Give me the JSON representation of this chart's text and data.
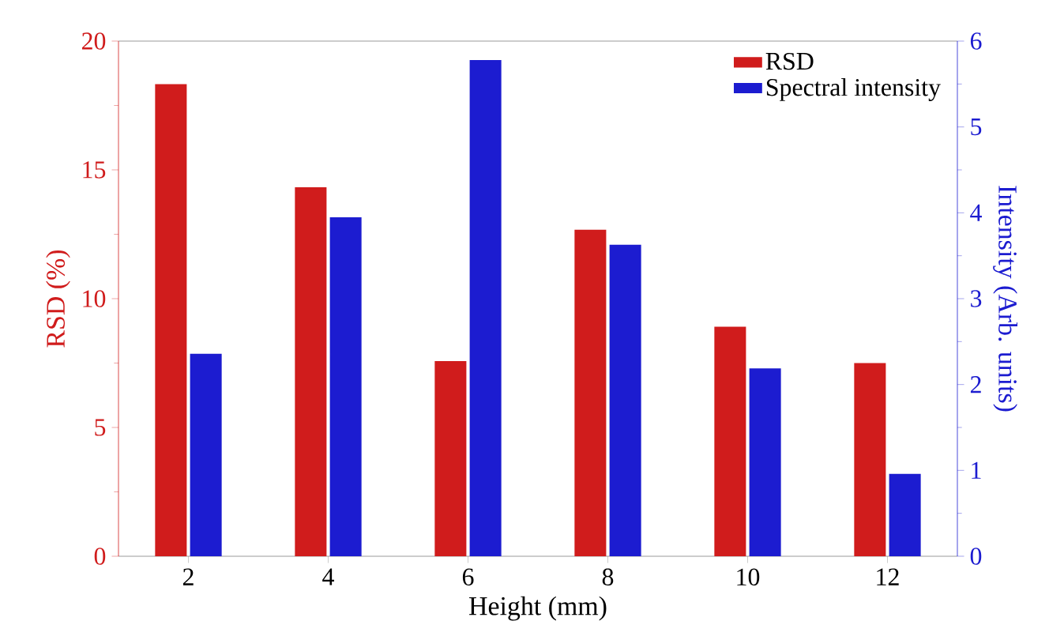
{
  "chart_data": {
    "type": "bar",
    "xlabel": "Height (mm)",
    "ylabel": "RSD (%)",
    "y2label": "Intensity (Arb. units)",
    "categories": [
      "2",
      "4",
      "6",
      "8",
      "10",
      "12"
    ],
    "series": [
      {
        "name": "RSD",
        "color": "#d01c1c",
        "values": [
          18.3,
          14.3,
          7.55,
          12.65,
          8.88,
          7.47
        ]
      },
      {
        "name": "Spectral intensity",
        "color": "#1c1cd0",
        "axis": "y2",
        "values": [
          2.35,
          3.94,
          5.77,
          3.62,
          2.18,
          0.95
        ]
      }
    ],
    "ylim": [
      0,
      20
    ],
    "yticks": [
      0,
      5,
      10,
      15,
      20
    ],
    "y2lim": [
      0,
      6
    ],
    "y2ticks": [
      0,
      1,
      2,
      3,
      4,
      5,
      6
    ],
    "legend": "top right"
  }
}
